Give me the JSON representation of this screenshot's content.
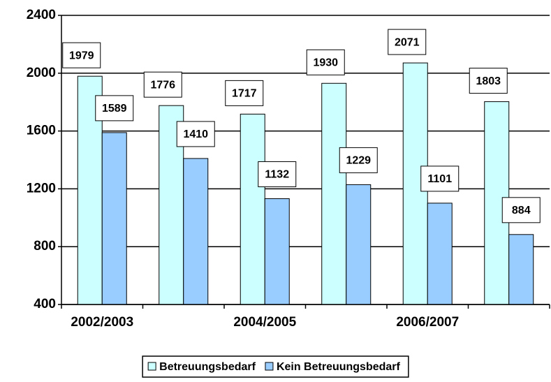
{
  "chart_data": {
    "type": "bar",
    "categories": [
      "2002/2003",
      null,
      "2004/2005",
      null,
      "2006/2007",
      null
    ],
    "series": [
      {
        "name": "Betreuungsbedarf",
        "color": "#ccffff",
        "values": [
          1979,
          1776,
          1717,
          1930,
          2071,
          1803
        ]
      },
      {
        "name": "Kein Betreuungsbedarf",
        "color": "#99ccff",
        "values": [
          1589,
          1410,
          1132,
          1229,
          1101,
          884
        ]
      }
    ],
    "ylim": [
      400,
      2400
    ],
    "yticks": [
      400,
      800,
      1200,
      1600,
      2000,
      2400
    ],
    "grid": true,
    "legend": "bottom"
  }
}
